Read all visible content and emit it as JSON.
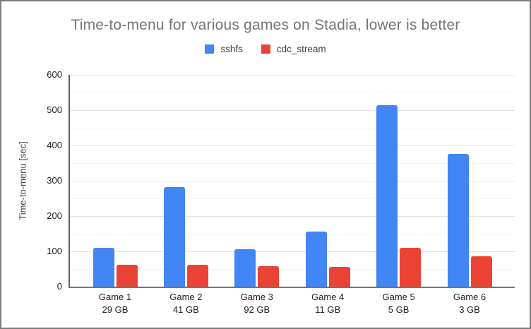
{
  "window": {
    "background": "#ffffff",
    "border_color": "#7d7d7d"
  },
  "chart_data": {
    "type": "bar",
    "title": "Time-to-menu for various games on Stadia, lower is better",
    "ylabel": "Time-to-menu [sec]",
    "xlabel": "",
    "ylim": [
      0,
      600
    ],
    "ytick_interval": 100,
    "minor_tick_interval": 50,
    "grid": true,
    "legend_position": "top",
    "categories": [
      {
        "label": "Game 1",
        "sublabel": "29 GB"
      },
      {
        "label": "Game 2",
        "sublabel": "41 GB"
      },
      {
        "label": "Game 3",
        "sublabel": "92 GB"
      },
      {
        "label": "Game 4",
        "sublabel": "11 GB"
      },
      {
        "label": "Game 5",
        "sublabel": "5 GB"
      },
      {
        "label": "Game 6",
        "sublabel": "3 GB"
      }
    ],
    "series": [
      {
        "name": "sshfs",
        "color": "#4285F4",
        "values": [
          110,
          282,
          107,
          156,
          515,
          376
        ]
      },
      {
        "name": "cdc_stream",
        "color": "#EA4335",
        "values": [
          62,
          63,
          59,
          56,
          110,
          86
        ]
      }
    ]
  }
}
